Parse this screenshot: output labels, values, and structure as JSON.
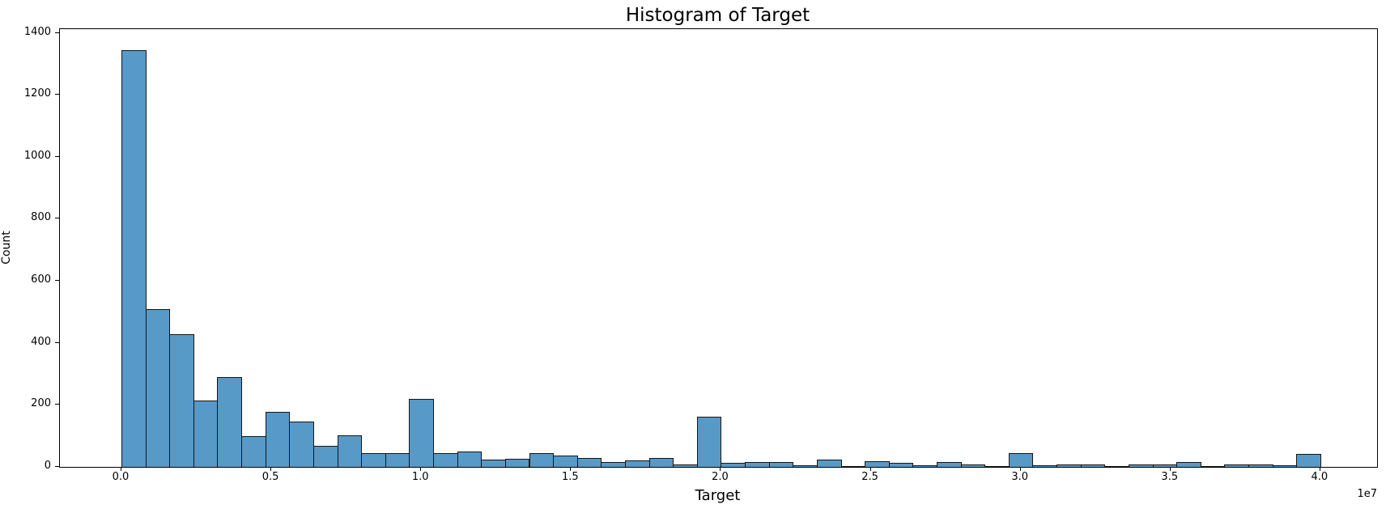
{
  "figure": {
    "title": "Histogram of Target",
    "xlabel": "Target",
    "ylabel": "Count",
    "x_offset_label": "1e7"
  },
  "chart_data": {
    "type": "bar",
    "subtype": "histogram",
    "title": "Histogram of Target",
    "xlabel": "Target",
    "ylabel": "Count",
    "x_unit": "1e7",
    "grid": false,
    "legend": false,
    "bar_fill_color": "#5799C7",
    "bar_edge_color": "#161616",
    "bin_start": 0.0,
    "bin_width": 0.08,
    "n_bins": 50,
    "xlim": [
      -0.2053,
      4.1894
    ],
    "ylim": [
      0,
      1412
    ],
    "x_ticks": [
      0.0,
      0.5,
      1.0,
      1.5,
      2.0,
      2.5,
      3.0,
      3.5,
      4.0
    ],
    "x_tick_labels": [
      "0.0",
      "0.5",
      "1.0",
      "1.5",
      "2.0",
      "2.5",
      "3.0",
      "3.5",
      "4.0"
    ],
    "y_ticks": [
      0,
      200,
      400,
      600,
      800,
      1000,
      1200,
      1400
    ],
    "y_tick_labels": [
      "0",
      "200",
      "400",
      "600",
      "800",
      "1000",
      "1200",
      "1400"
    ],
    "values": [
      1345,
      510,
      427,
      215,
      290,
      100,
      178,
      147,
      68,
      102,
      45,
      45,
      220,
      44,
      50,
      23,
      27,
      44,
      37,
      30,
      15,
      22,
      29,
      8,
      163,
      14,
      15,
      15,
      5,
      23,
      2,
      18,
      13,
      4,
      16,
      8,
      1,
      45,
      6,
      9,
      9,
      2,
      9,
      7,
      17,
      1,
      8,
      7,
      5,
      42
    ]
  }
}
